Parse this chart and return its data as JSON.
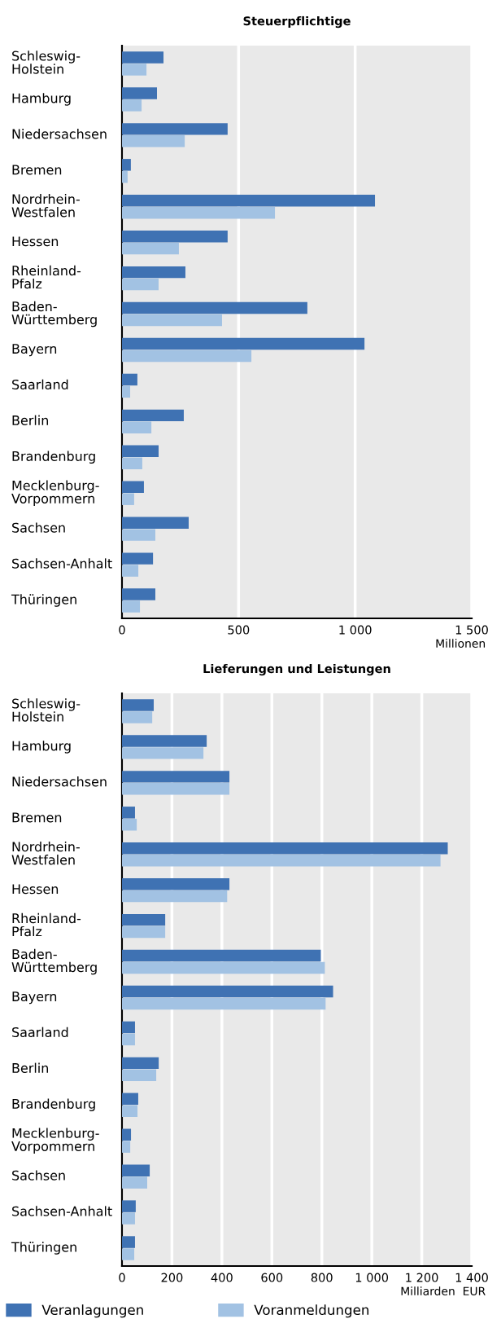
{
  "chart_data": [
    {
      "type": "bar",
      "orientation": "horizontal",
      "title": "Steuerpflichtige",
      "xlabel": "Millionen",
      "categories": [
        "Schleswig-\nHolstein",
        "Hamburg",
        "Niedersachsen",
        "Bremen",
        "Nordrhein-\nWestfalen",
        "Hessen",
        "Rheinland-\nPfalz",
        "Baden-\nWürttemberg",
        "Bayern",
        "Saarland",
        "Berlin",
        "Brandenburg",
        "Mecklenburg-\nVorpommern",
        "Sachsen",
        "Sachsen-Anhalt",
        "Thüringen"
      ],
      "series": [
        {
          "color": "#3f72b3",
          "values": [
            178,
            150,
            453,
            38,
            1085,
            453,
            272,
            795,
            1040,
            66,
            265,
            157,
            94,
            286,
            133,
            143
          ]
        },
        {
          "color": "#a2c2e3",
          "values": [
            105,
            84,
            269,
            24,
            656,
            244,
            157,
            429,
            555,
            35,
            126,
            87,
            52,
            143,
            70,
            77
          ]
        }
      ],
      "xlim": [
        0,
        1500
      ],
      "xticks": [
        0,
        500,
        {
          "value": 1000,
          "label": "1 000"
        },
        {
          "value": 1500,
          "label": "1 500"
        }
      ],
      "grid": "x"
    },
    {
      "type": "bar",
      "orientation": "horizontal",
      "title": "Lieferungen und Leistungen",
      "xlabel": "Milliarden  EUR",
      "categories": [
        "Schleswig-\nHolstein",
        "Hamburg",
        "Niedersachsen",
        "Bremen",
        "Nordrhein-\nWestfalen",
        "Hessen",
        "Rheinland-\nPfalz",
        "Baden-\nWürttemberg",
        "Bayern",
        "Saarland",
        "Berlin",
        "Brandenburg",
        "Mecklenburg-\nVorpommern",
        "Sachsen",
        "Sachsen-Anhalt",
        "Thüringen"
      ],
      "series": [
        {
          "name": "Veranlagungen",
          "color": "#3f72b3",
          "values": [
            127,
            339,
            430,
            52,
            1304,
            430,
            173,
            796,
            845,
            52,
            147,
            65,
            36,
            111,
            55,
            52
          ]
        },
        {
          "name": "Voranmeldungen",
          "color": "#a2c2e3",
          "values": [
            121,
            326,
            430,
            59,
            1275,
            421,
            173,
            812,
            815,
            52,
            137,
            62,
            33,
            101,
            52,
            49
          ]
        }
      ],
      "xlim": [
        0,
        1400
      ],
      "xticks": [
        0,
        200,
        400,
        600,
        800,
        {
          "value": 1000,
          "label": "1 000"
        },
        {
          "value": 1200,
          "label": "1 200"
        },
        {
          "value": 1400,
          "label": "1 400"
        }
      ],
      "grid": "x",
      "legend": "bottom"
    }
  ]
}
